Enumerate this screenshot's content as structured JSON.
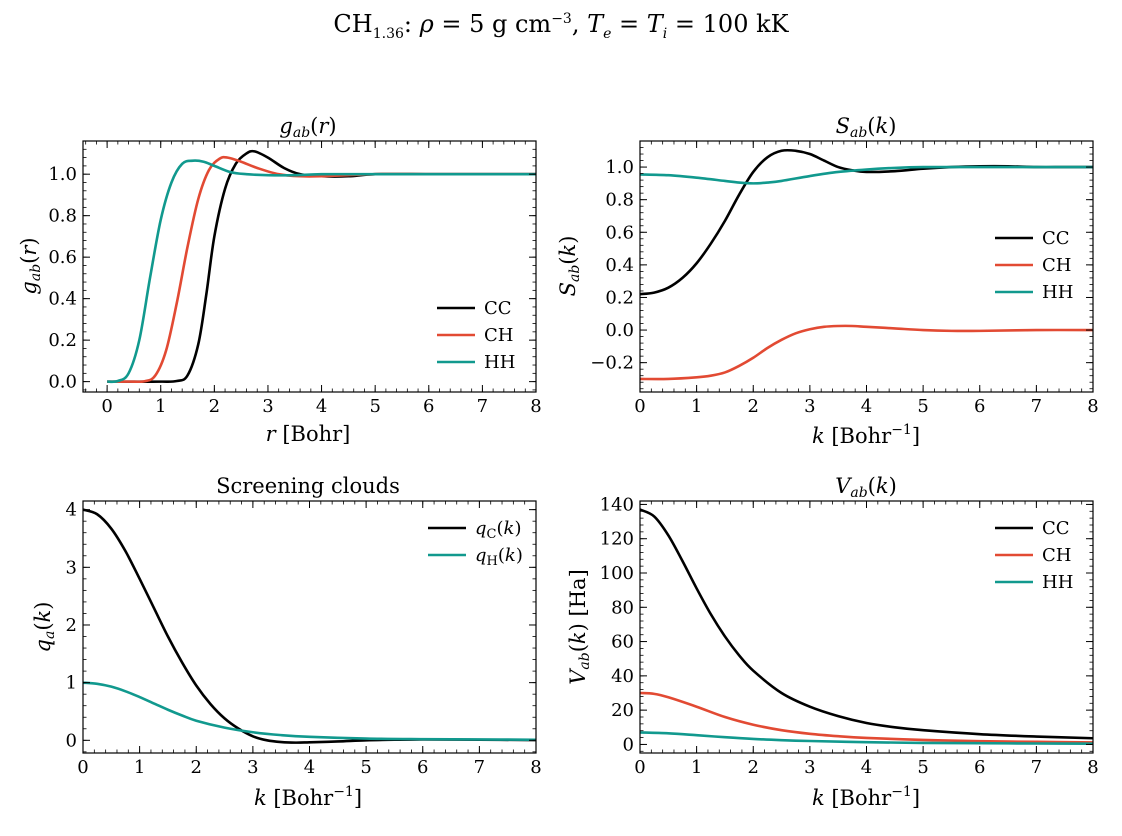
{
  "figure": {
    "suptitle_plain": "CH1.36: ρ = 5 g cm−3, Te = Ti = 100 kK"
  },
  "chart_data": [
    {
      "id": "g",
      "type": "line",
      "title": "g_ab(r)",
      "xlabel": "r [Bohr]",
      "ylabel": "g_ab(r)",
      "xlim": [
        -0.45,
        8.0
      ],
      "ylim": [
        -0.05,
        1.16
      ],
      "xticks": [
        0,
        1,
        2,
        3,
        4,
        5,
        6,
        7,
        8
      ],
      "xtick_labels": [
        "0",
        "1",
        "2",
        "3",
        "4",
        "5",
        "6",
        "7",
        "8"
      ],
      "yticks": [
        0.0,
        0.2,
        0.4,
        0.6,
        0.8,
        1.0
      ],
      "ytick_labels": [
        "0.0",
        "0.2",
        "0.4",
        "0.6",
        "0.8",
        "1.0"
      ],
      "legend_position": "lower-right",
      "series": [
        {
          "name": "CC",
          "color": "#000000",
          "x": [
            0,
            0.5,
            1.0,
            1.3,
            1.5,
            1.7,
            1.85,
            2.0,
            2.2,
            2.4,
            2.6,
            2.75,
            3.0,
            3.3,
            3.6,
            4.0,
            4.5,
            5.0,
            6.0,
            7.0,
            8.0
          ],
          "y": [
            0,
            0,
            0,
            0.003,
            0.03,
            0.18,
            0.42,
            0.7,
            0.93,
            1.05,
            1.1,
            1.11,
            1.08,
            1.03,
            1.0,
            0.99,
            0.99,
            1.0,
            1.0,
            1.0,
            1.0
          ]
        },
        {
          "name": "CH",
          "color": "#E24A33",
          "x": [
            0,
            0.4,
            0.7,
            0.9,
            1.1,
            1.3,
            1.5,
            1.7,
            1.9,
            2.1,
            2.25,
            2.5,
            2.8,
            3.2,
            3.6,
            4.0,
            5.0,
            6.0,
            7.0,
            8.0
          ],
          "y": [
            0,
            0,
            0.002,
            0.03,
            0.15,
            0.38,
            0.65,
            0.88,
            1.02,
            1.075,
            1.08,
            1.06,
            1.03,
            1.0,
            0.99,
            0.99,
            1.0,
            1.0,
            1.0,
            1.0
          ]
        },
        {
          "name": "HH",
          "color": "#11998E",
          "x": [
            0,
            0.2,
            0.4,
            0.6,
            0.8,
            1.0,
            1.2,
            1.4,
            1.6,
            1.8,
            2.0,
            2.3,
            2.6,
            3.0,
            3.5,
            4.0,
            5.0,
            6.0,
            7.0,
            8.0
          ],
          "y": [
            0,
            0.003,
            0.04,
            0.2,
            0.5,
            0.78,
            0.96,
            1.05,
            1.065,
            1.06,
            1.04,
            1.01,
            1.0,
            0.995,
            0.995,
            1.0,
            1.0,
            1.0,
            1.0,
            1.0
          ]
        }
      ]
    },
    {
      "id": "s",
      "type": "line",
      "title": "S_ab(k)",
      "xlabel": "k [Bohr^-1]",
      "ylabel": "S_ab(k)",
      "xlim": [
        0,
        8
      ],
      "ylim": [
        -0.38,
        1.16
      ],
      "xticks": [
        0,
        1,
        2,
        3,
        4,
        5,
        6,
        7,
        8
      ],
      "xtick_labels": [
        "0",
        "1",
        "2",
        "3",
        "4",
        "5",
        "6",
        "7",
        "8"
      ],
      "yticks": [
        -0.2,
        0.0,
        0.2,
        0.4,
        0.6,
        0.8,
        1.0
      ],
      "ytick_labels": [
        "−0.2",
        "0.0",
        "0.2",
        "0.4",
        "0.6",
        "0.8",
        "1.0"
      ],
      "legend_position": "center-right",
      "series": [
        {
          "name": "CC",
          "color": "#000000",
          "x": [
            0,
            0.25,
            0.5,
            0.75,
            1.0,
            1.25,
            1.5,
            1.75,
            2.0,
            2.25,
            2.5,
            2.75,
            3.0,
            3.25,
            3.5,
            3.75,
            4.0,
            4.5,
            5.0,
            5.5,
            6.0,
            6.5,
            7.0,
            7.5,
            8.0
          ],
          "y": [
            0.22,
            0.23,
            0.26,
            0.32,
            0.41,
            0.53,
            0.67,
            0.83,
            0.97,
            1.06,
            1.1,
            1.1,
            1.08,
            1.04,
            1.0,
            0.98,
            0.97,
            0.975,
            0.99,
            1.0,
            1.005,
            1.005,
            1.0,
            1.0,
            1.0
          ]
        },
        {
          "name": "CH",
          "color": "#E24A33",
          "x": [
            0,
            0.5,
            1.0,
            1.25,
            1.5,
            1.75,
            2.0,
            2.25,
            2.5,
            2.75,
            3.0,
            3.25,
            3.5,
            3.75,
            4.0,
            4.5,
            5.0,
            5.5,
            6.0,
            7.0,
            8.0
          ],
          "y": [
            -0.3,
            -0.3,
            -0.29,
            -0.28,
            -0.26,
            -0.22,
            -0.17,
            -0.11,
            -0.06,
            -0.02,
            0.005,
            0.02,
            0.025,
            0.025,
            0.02,
            0.01,
            0.0,
            -0.005,
            -0.005,
            0.0,
            0.0
          ]
        },
        {
          "name": "HH",
          "color": "#11998E",
          "x": [
            0,
            0.5,
            1.0,
            1.5,
            1.75,
            2.0,
            2.25,
            2.5,
            3.0,
            3.5,
            4.0,
            4.5,
            5.0,
            5.5,
            6.0,
            7.0,
            8.0
          ],
          "y": [
            0.955,
            0.95,
            0.935,
            0.915,
            0.905,
            0.9,
            0.905,
            0.915,
            0.945,
            0.97,
            0.985,
            0.995,
            1.0,
            1.0,
            1.0,
            1.0,
            1.0
          ]
        }
      ]
    },
    {
      "id": "q",
      "type": "line",
      "title": "Screening clouds",
      "xlabel": "k [Bohr^-1]",
      "ylabel": "q_a(k)",
      "xlim": [
        0,
        8
      ],
      "ylim": [
        -0.22,
        4.15
      ],
      "xticks": [
        0,
        1,
        2,
        3,
        4,
        5,
        6,
        7,
        8
      ],
      "xtick_labels": [
        "0",
        "1",
        "2",
        "3",
        "4",
        "5",
        "6",
        "7",
        "8"
      ],
      "yticks": [
        0,
        1,
        2,
        3,
        4
      ],
      "ytick_labels": [
        "0",
        "1",
        "2",
        "3",
        "4"
      ],
      "legend_position": "top-right",
      "series": [
        {
          "name": "q_C(k)",
          "color": "#000000",
          "x": [
            0,
            0.25,
            0.5,
            0.75,
            1.0,
            1.25,
            1.5,
            1.75,
            2.0,
            2.25,
            2.5,
            2.75,
            3.0,
            3.25,
            3.5,
            3.75,
            4.0,
            4.5,
            5.0,
            5.5,
            6.0,
            7.0,
            8.0
          ],
          "y": [
            4.0,
            3.92,
            3.67,
            3.28,
            2.8,
            2.3,
            1.8,
            1.35,
            0.95,
            0.63,
            0.38,
            0.2,
            0.07,
            0.0,
            -0.03,
            -0.04,
            -0.035,
            -0.02,
            0.0,
            0.01,
            0.015,
            0.01,
            0.005
          ]
        },
        {
          "name": "q_H(k)",
          "color": "#11998E",
          "x": [
            0,
            0.25,
            0.5,
            0.75,
            1.0,
            1.25,
            1.5,
            1.75,
            2.0,
            2.5,
            3.0,
            3.5,
            4.0,
            5.0,
            6.0,
            7.0,
            8.0
          ],
          "y": [
            1.0,
            0.98,
            0.93,
            0.85,
            0.75,
            0.64,
            0.53,
            0.43,
            0.34,
            0.22,
            0.14,
            0.09,
            0.06,
            0.03,
            0.02,
            0.015,
            0.01
          ]
        }
      ]
    },
    {
      "id": "v",
      "type": "line",
      "title": "V_ab(k)",
      "xlabel": "k [Bohr^-1]",
      "ylabel": "V_ab(k) [Ha]",
      "xlim": [
        0,
        8
      ],
      "ylim": [
        -5,
        142
      ],
      "xticks": [
        0,
        1,
        2,
        3,
        4,
        5,
        6,
        7,
        8
      ],
      "xtick_labels": [
        "0",
        "1",
        "2",
        "3",
        "4",
        "5",
        "6",
        "7",
        "8"
      ],
      "yticks": [
        0,
        20,
        40,
        60,
        80,
        100,
        120,
        140
      ],
      "ytick_labels": [
        "0",
        "20",
        "40",
        "60",
        "80",
        "100",
        "120",
        "140"
      ],
      "legend_position": "top-right",
      "series": [
        {
          "name": "CC",
          "color": "#000000",
          "x": [
            0,
            0.25,
            0.5,
            0.75,
            1.0,
            1.25,
            1.5,
            1.75,
            2.0,
            2.5,
            3.0,
            3.5,
            4.0,
            4.5,
            5.0,
            6.0,
            7.0,
            8.0
          ],
          "y": [
            137,
            133,
            122,
            107,
            91,
            76,
            63,
            52,
            43,
            30,
            22,
            16.5,
            12.5,
            10,
            8.3,
            6,
            4.6,
            3.6
          ]
        },
        {
          "name": "CH",
          "color": "#E24A33",
          "x": [
            0,
            0.25,
            0.5,
            1.0,
            1.5,
            2.0,
            2.5,
            3.0,
            3.5,
            4.0,
            5.0,
            6.0,
            7.0,
            8.0
          ],
          "y": [
            30,
            29.5,
            27.5,
            22,
            16,
            11.5,
            8.3,
            6.2,
            4.8,
            3.8,
            2.6,
            1.9,
            1.5,
            1.2
          ]
        },
        {
          "name": "HH",
          "color": "#11998E",
          "x": [
            0,
            0.5,
            1.0,
            1.5,
            2.0,
            2.5,
            3.0,
            4.0,
            5.0,
            6.0,
            7.0,
            8.0
          ],
          "y": [
            7,
            6.5,
            5.4,
            4.2,
            3.2,
            2.5,
            2.0,
            1.3,
            0.9,
            0.7,
            0.55,
            0.45
          ]
        }
      ]
    }
  ]
}
